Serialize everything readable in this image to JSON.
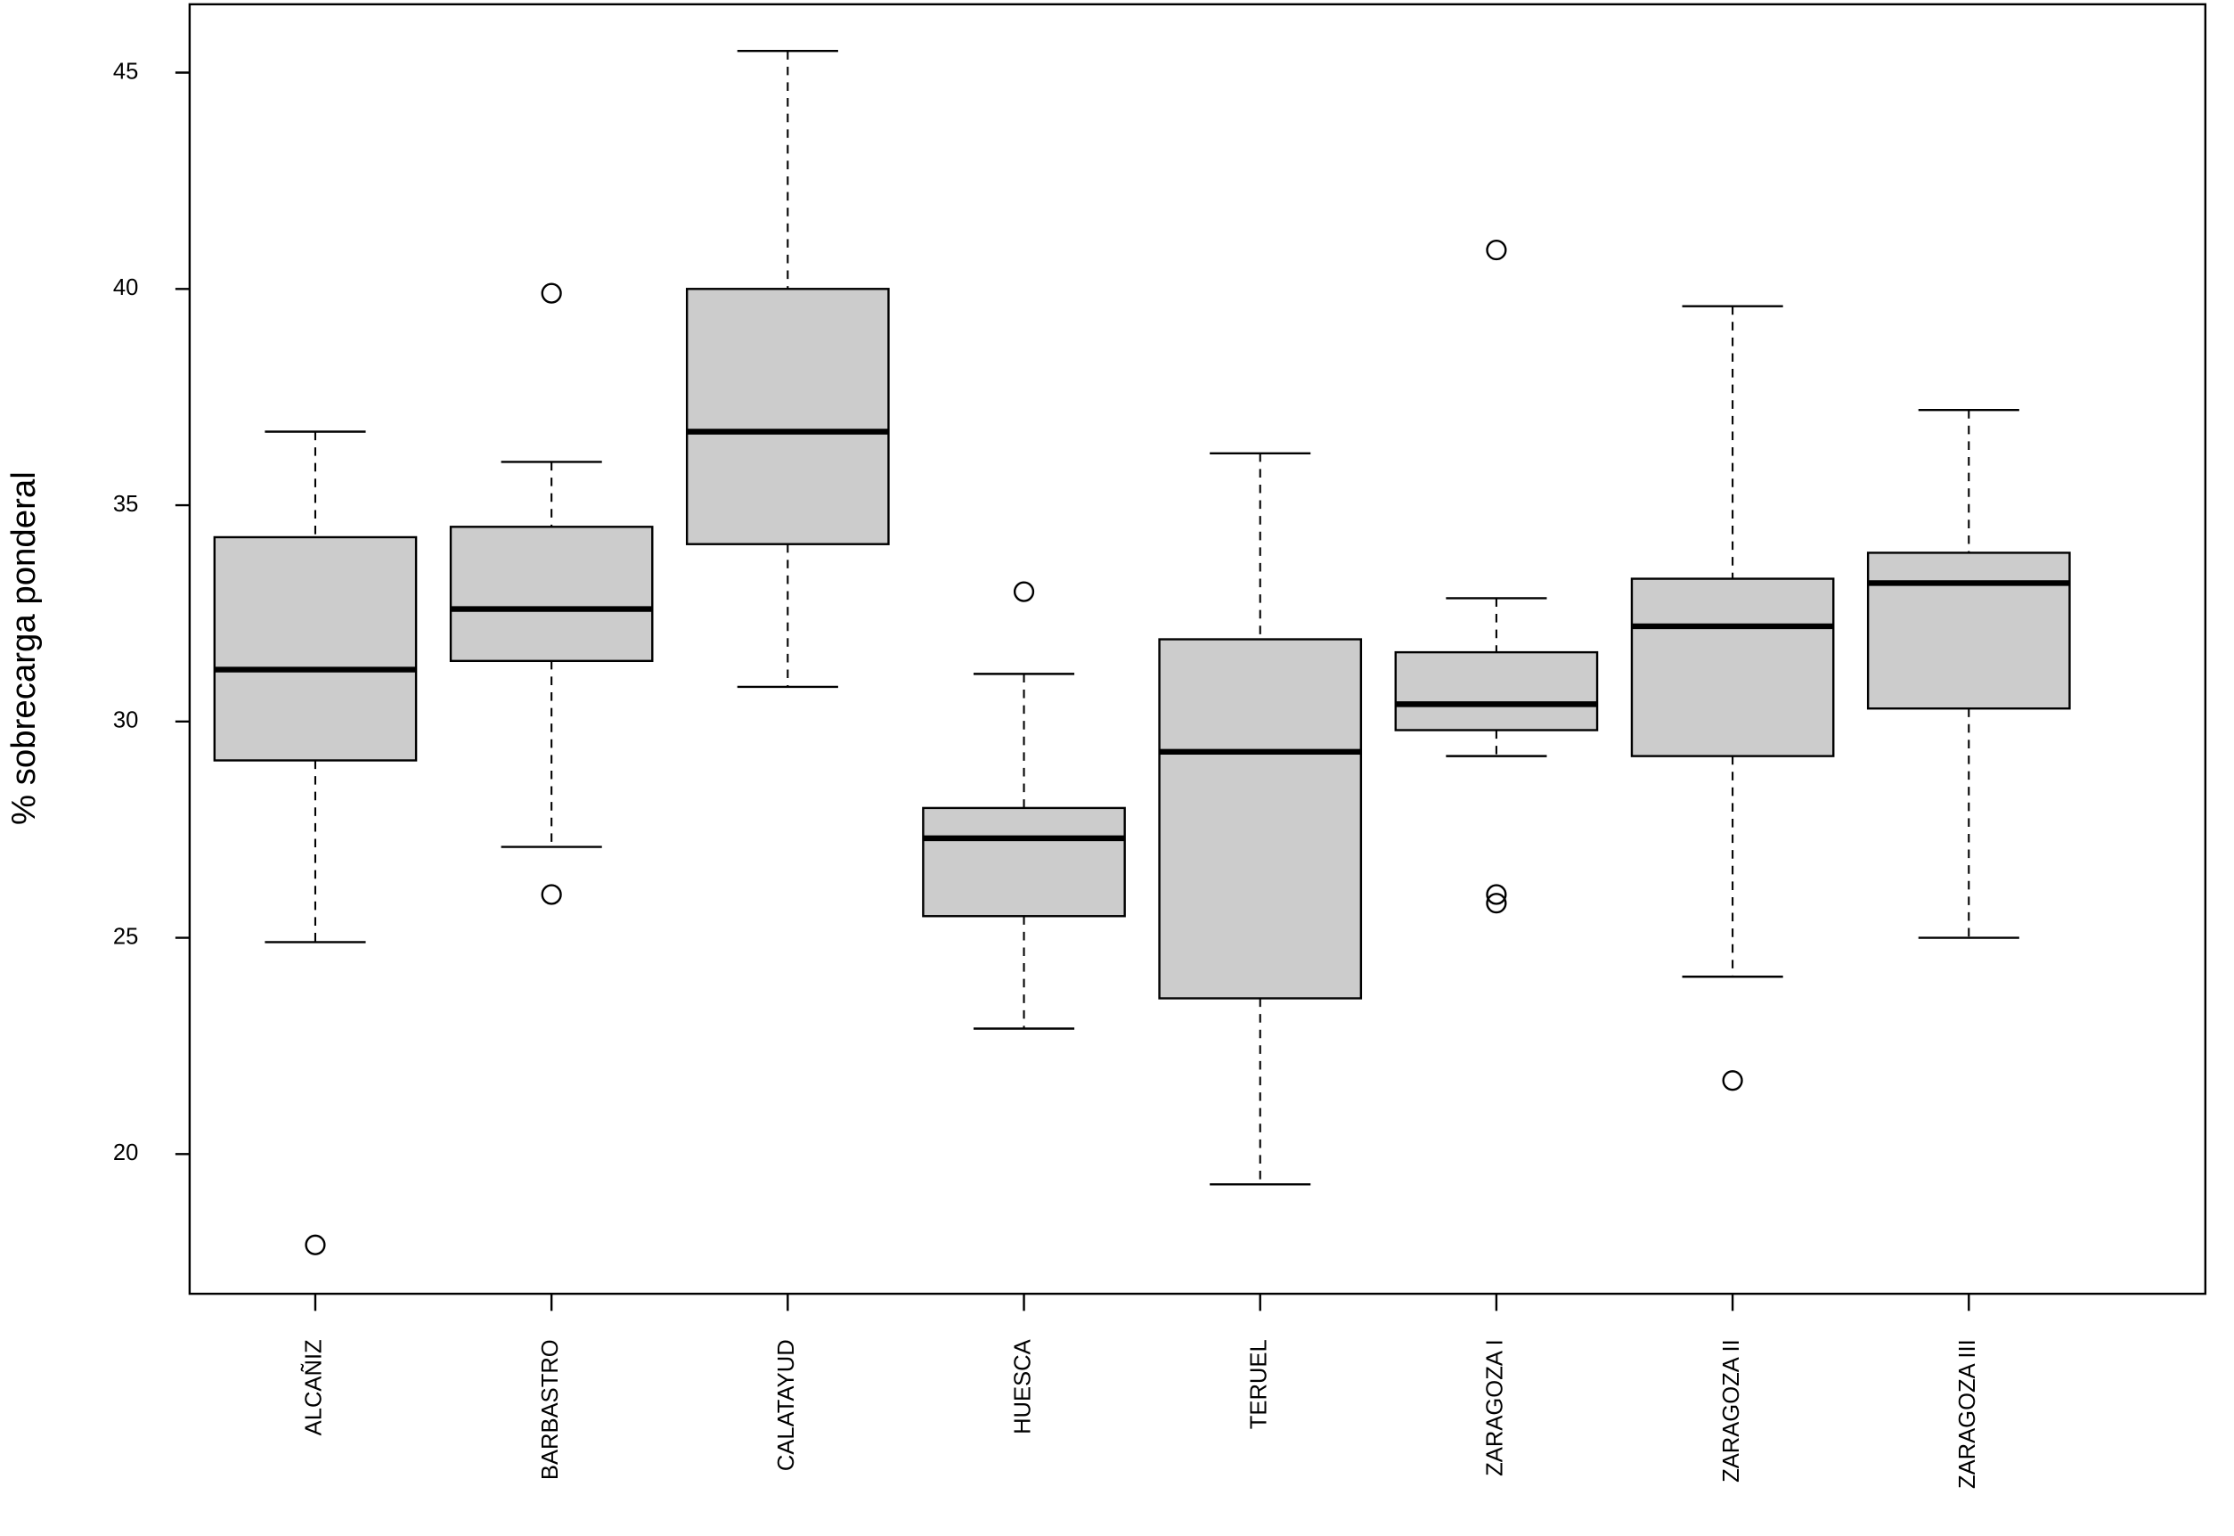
{
  "chart_data": {
    "type": "box",
    "y_label": "% sobrecarga ponderal",
    "categories": [
      "ALCAÑIZ",
      "BARBASTRO",
      "CALATAYUD",
      "HUESCA",
      "TERUEL",
      "ZARAGOZA I",
      "ZARAGOZA II",
      "ZARAGOZA III"
    ],
    "color": "#cccccc",
    "boxes": [
      {
        "whisker_low": 24.9,
        "q1": 29.1,
        "median": 31.2,
        "q3": 34.26,
        "whisker_high": 36.7,
        "outliers": [
          17.9
        ]
      },
      {
        "whisker_low": 27.1,
        "q1": 31.4,
        "median": 32.6,
        "q3": 34.5,
        "whisker_high": 36.0,
        "outliers": [
          39.9,
          26.0
        ]
      },
      {
        "whisker_low": 30.8,
        "q1": 34.1,
        "median": 36.7,
        "q3": 40.0,
        "whisker_high": 45.5,
        "outliers": []
      },
      {
        "whisker_low": 22.9,
        "q1": 25.5,
        "median": 27.3,
        "q3": 28.0,
        "whisker_high": 31.1,
        "outliers": [
          33.0
        ]
      },
      {
        "whisker_low": 19.3,
        "q1": 23.6,
        "median": 29.3,
        "q3": 31.9,
        "whisker_high": 36.2,
        "outliers": []
      },
      {
        "whisker_low": 29.2,
        "q1": 29.8,
        "median": 30.4,
        "q3": 31.6,
        "whisker_high": 32.85,
        "outliers": [
          40.9,
          26.0,
          25.8
        ]
      },
      {
        "whisker_low": 24.1,
        "q1": 29.2,
        "median": 32.2,
        "q3": 33.3,
        "whisker_high": 39.6,
        "outliers": [
          21.7
        ]
      },
      {
        "whisker_low": 25.0,
        "q1": 30.3,
        "median": 33.2,
        "q3": 33.9,
        "whisker_high": 37.2,
        "outliers": []
      }
    ],
    "ylim": [
      16.77,
      46.58
    ],
    "yticks": [
      20,
      25,
      30,
      35,
      40,
      45
    ]
  }
}
